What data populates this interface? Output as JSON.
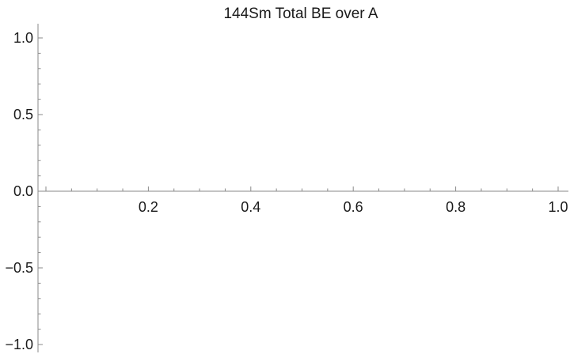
{
  "chart_data": {
    "type": "line",
    "title": "144Sm Total BE over A",
    "xlabel": "",
    "ylabel": "",
    "xlim": [
      0,
      1.02
    ],
    "ylim": [
      -1.02,
      1.1
    ],
    "x_ticks": [
      {
        "value": 0.2,
        "label": "0.2"
      },
      {
        "value": 0.4,
        "label": "0.4"
      },
      {
        "value": 0.6,
        "label": "0.6"
      },
      {
        "value": 0.8,
        "label": "0.8"
      },
      {
        "value": 1.0,
        "label": "1.0"
      }
    ],
    "y_ticks": [
      {
        "value": 1.0,
        "label": "1.0"
      },
      {
        "value": 0.5,
        "label": "0.5"
      },
      {
        "value": 0.0,
        "label": "0.0"
      },
      {
        "value": -0.5,
        "label": "−0.5"
      },
      {
        "value": -1.0,
        "label": "−1.0"
      }
    ],
    "x_minor_step": 0.05,
    "y_minor_step": 0.1,
    "series": [],
    "grid": false,
    "legend": "none"
  }
}
